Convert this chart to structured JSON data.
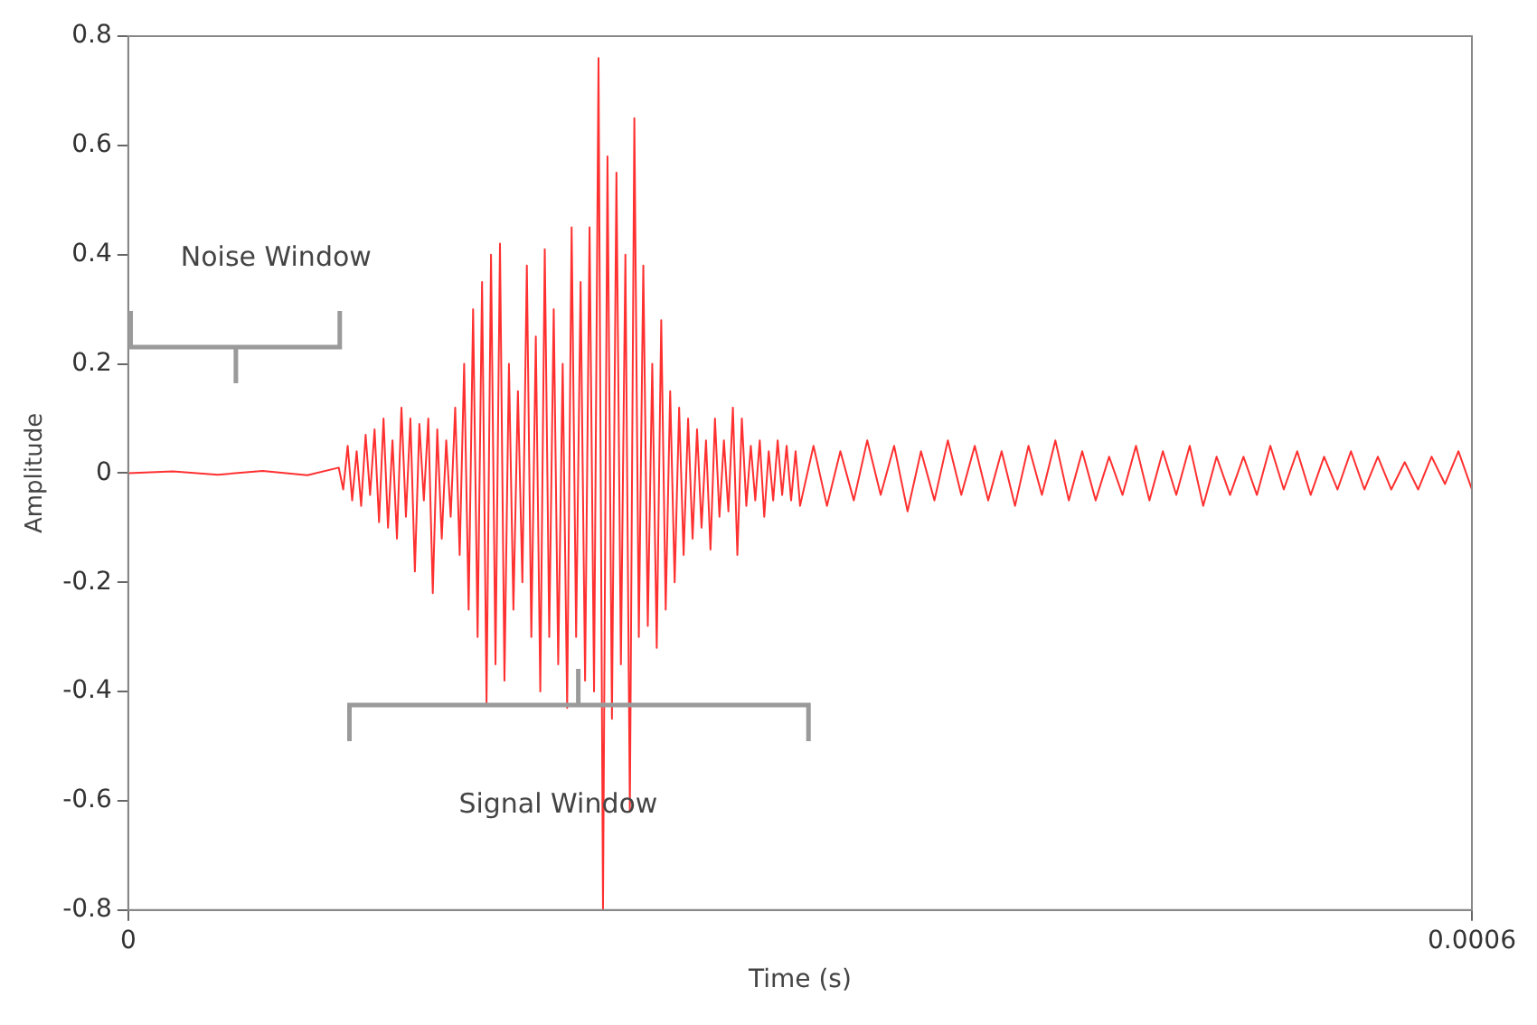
{
  "chart_data": {
    "type": "line",
    "xlabel": "Time (s)",
    "ylabel": "Amplitude",
    "xlim": [
      0,
      0.0006
    ],
    "xticks": [
      0,
      0.0006
    ],
    "ylim": [
      -0.8,
      0.8
    ],
    "yticks": [
      -0.8,
      -0.6,
      -0.4,
      -0.2,
      0,
      0.2,
      0.4,
      0.6,
      0.8
    ],
    "grid": false,
    "legend": false,
    "marker": "none",
    "line_style": "solid",
    "annotations": [
      "Noise Window",
      "Signal Window"
    ],
    "series": [
      {
        "color": "#ff3030",
        "x": [
          0,
          2e-05,
          4e-05,
          6e-05,
          8e-05,
          9.4e-05,
          9.6e-05,
          9.8e-05,
          0.0001,
          0.000102,
          0.000104,
          0.000106,
          0.000108,
          0.00011,
          0.000112,
          0.000114,
          0.000116,
          0.000118,
          0.00012,
          0.000122,
          0.000124,
          0.000126,
          0.000128,
          0.00013,
          0.000132,
          0.000134,
          0.000136,
          0.000138,
          0.00014,
          0.000142,
          0.000144,
          0.000146,
          0.000148,
          0.00015,
          0.000152,
          0.000154,
          0.000156,
          0.000158,
          0.00016,
          0.000162,
          0.000164,
          0.000166,
          0.000168,
          0.00017,
          0.000172,
          0.000174,
          0.000176,
          0.000178,
          0.00018,
          0.000182,
          0.000184,
          0.000186,
          0.000188,
          0.00019,
          0.000192,
          0.000194,
          0.000196,
          0.000198,
          0.0002,
          0.000202,
          0.000204,
          0.000206,
          0.000208,
          0.00021,
          0.000212,
          0.000214,
          0.000216,
          0.000218,
          0.00022,
          0.000222,
          0.000224,
          0.000226,
          0.000228,
          0.00023,
          0.000232,
          0.000234,
          0.000236,
          0.000238,
          0.00024,
          0.000242,
          0.000244,
          0.000246,
          0.000248,
          0.00025,
          0.000252,
          0.000254,
          0.000256,
          0.000258,
          0.00026,
          0.000262,
          0.000264,
          0.000266,
          0.000268,
          0.00027,
          0.000272,
          0.000274,
          0.000276,
          0.000278,
          0.00028,
          0.000282,
          0.000284,
          0.000286,
          0.000288,
          0.00029,
          0.000292,
          0.000294,
          0.000296,
          0.000298,
          0.0003,
          0.000306,
          0.000312,
          0.000318,
          0.000324,
          0.00033,
          0.000336,
          0.000342,
          0.000348,
          0.000354,
          0.00036,
          0.000366,
          0.000372,
          0.000378,
          0.000384,
          0.00039,
          0.000396,
          0.000402,
          0.000408,
          0.000414,
          0.00042,
          0.000426,
          0.000432,
          0.000438,
          0.000444,
          0.00045,
          0.000456,
          0.000462,
          0.000468,
          0.000474,
          0.00048,
          0.000486,
          0.000492,
          0.000498,
          0.000504,
          0.00051,
          0.000516,
          0.000522,
          0.000528,
          0.000534,
          0.00054,
          0.000546,
          0.000552,
          0.000558,
          0.000564,
          0.00057,
          0.000576,
          0.000582,
          0.000588,
          0.000594,
          0.0006
        ],
        "values": [
          0,
          0.003,
          -0.003,
          0.004,
          -0.004,
          0.01,
          -0.03,
          0.05,
          -0.05,
          0.04,
          -0.06,
          0.07,
          -0.04,
          0.08,
          -0.09,
          0.1,
          -0.1,
          0.06,
          -0.12,
          0.12,
          -0.08,
          0.1,
          -0.18,
          0.09,
          -0.05,
          0.1,
          -0.22,
          0.08,
          -0.12,
          0.06,
          -0.08,
          0.12,
          -0.15,
          0.2,
          -0.25,
          0.3,
          -0.3,
          0.35,
          -0.42,
          0.4,
          -0.35,
          0.42,
          -0.38,
          0.2,
          -0.25,
          0.15,
          -0.2,
          0.38,
          -0.3,
          0.25,
          -0.4,
          0.41,
          -0.3,
          0.3,
          -0.35,
          0.2,
          -0.43,
          0.45,
          -0.3,
          0.35,
          -0.38,
          0.45,
          -0.4,
          0.76,
          -0.8,
          0.58,
          -0.45,
          0.55,
          -0.35,
          0.4,
          -0.62,
          0.65,
          -0.3,
          0.38,
          -0.28,
          0.2,
          -0.32,
          0.28,
          -0.25,
          0.15,
          -0.2,
          0.12,
          -0.15,
          0.1,
          -0.12,
          0.08,
          -0.1,
          0.06,
          -0.14,
          0.1,
          -0.08,
          0.06,
          -0.07,
          0.12,
          -0.15,
          0.1,
          -0.06,
          0.05,
          -0.05,
          0.06,
          -0.08,
          0.04,
          -0.05,
          0.06,
          -0.04,
          0.05,
          -0.05,
          0.04,
          -0.06,
          0.05,
          -0.06,
          0.04,
          -0.05,
          0.06,
          -0.04,
          0.05,
          -0.07,
          0.04,
          -0.05,
          0.06,
          -0.04,
          0.05,
          -0.05,
          0.04,
          -0.06,
          0.05,
          -0.04,
          0.06,
          -0.05,
          0.04,
          -0.05,
          0.03,
          -0.04,
          0.05,
          -0.05,
          0.04,
          -0.04,
          0.05,
          -0.06,
          0.03,
          -0.04,
          0.03,
          -0.04,
          0.05,
          -0.03,
          0.04,
          -0.04,
          0.03,
          -0.03,
          0.04,
          -0.03,
          0.03,
          -0.03,
          0.02,
          -0.03,
          0.03,
          -0.02,
          0.04,
          -0.03
        ]
      }
    ]
  }
}
